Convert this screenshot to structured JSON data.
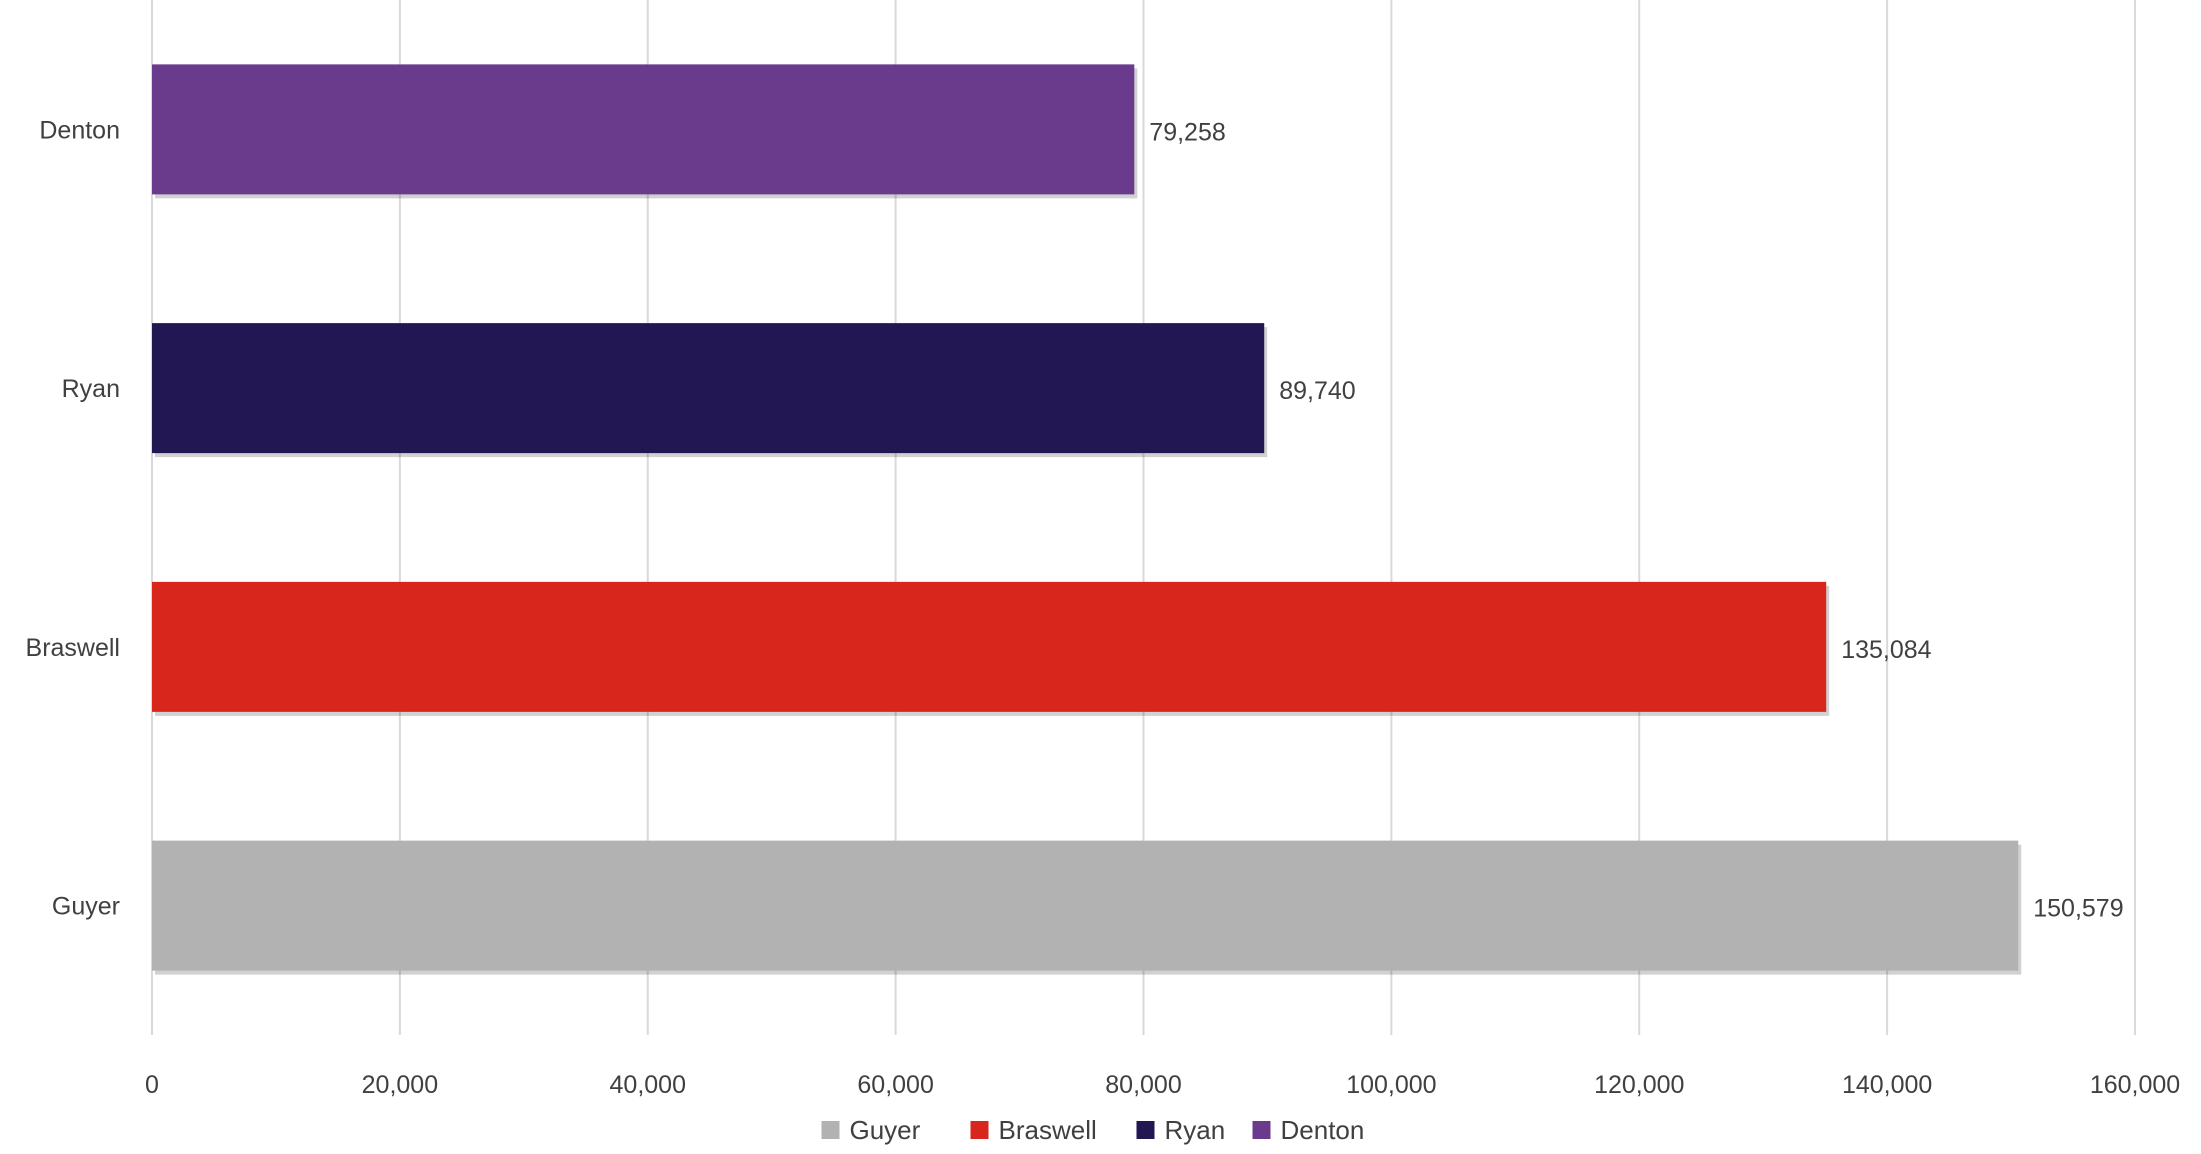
{
  "chart_data": {
    "type": "bar",
    "orientation": "horizontal",
    "categories": [
      "Guyer",
      "Braswell",
      "Ryan",
      "Denton"
    ],
    "values": [
      150579,
      135084,
      89740,
      79258
    ],
    "data_labels": [
      "150,579",
      "135,084",
      "89,740",
      "79,258"
    ],
    "colors": [
      "#b2b2b2",
      "#d9261c",
      "#221653",
      "#6a3b8d"
    ],
    "xlim": [
      0,
      160000
    ],
    "ticks": [
      0,
      20000,
      40000,
      60000,
      80000,
      100000,
      120000,
      140000,
      160000
    ],
    "tick_labels": [
      "0",
      "20,000",
      "40,000",
      "60,000",
      "80,000",
      "100,000",
      "120,000",
      "140,000",
      "160,000"
    ],
    "title": "",
    "xlabel": "",
    "ylabel": "",
    "grid": "vertical",
    "legend": {
      "position": "bottom",
      "entries": [
        "Guyer",
        "Braswell",
        "Ryan",
        "Denton"
      ]
    }
  }
}
